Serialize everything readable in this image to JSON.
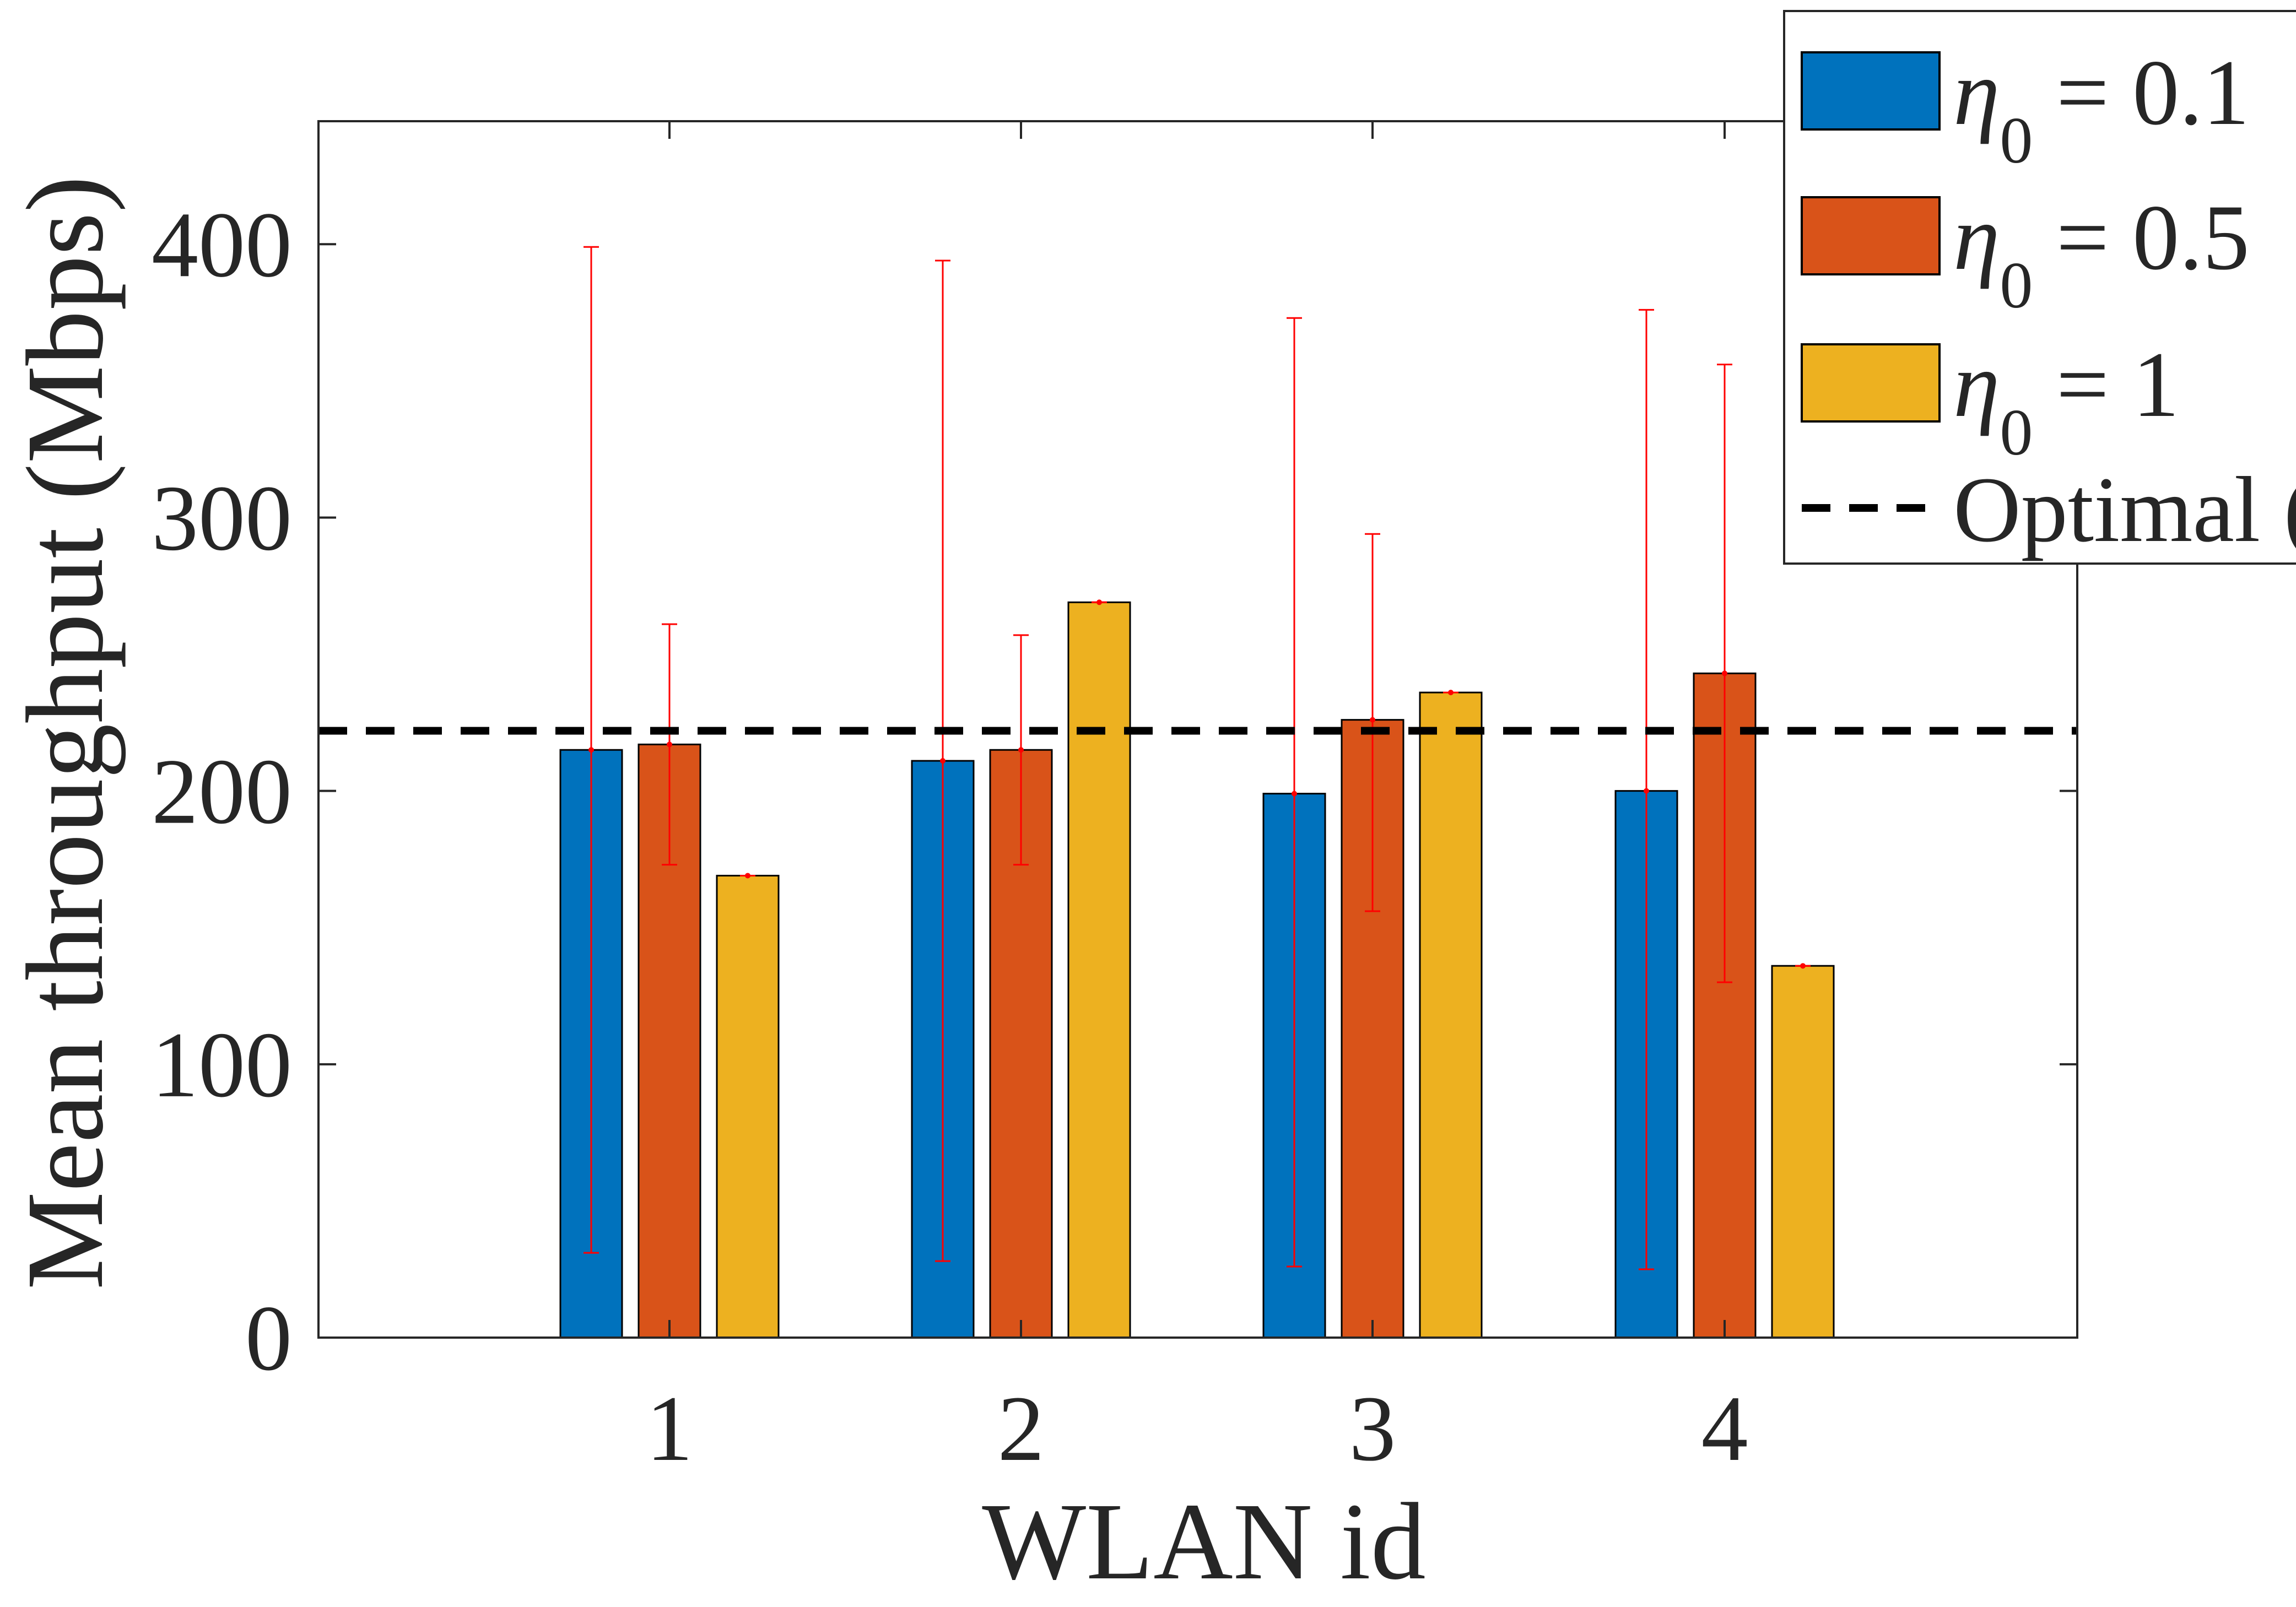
{
  "chart_data": {
    "type": "bar",
    "categories": [
      "1",
      "2",
      "3",
      "4"
    ],
    "xlabel": "WLAN id",
    "ylabel": "Mean throughput (Mbps)",
    "ylim": [
      0,
      445
    ],
    "yticks": [
      0,
      100,
      200,
      300,
      400
    ],
    "grid": false,
    "legend_position": "top-right",
    "series": [
      {
        "name_symbol": "η",
        "name_subscript": "0",
        "name_value": " = 0.1",
        "color": "#0072BD",
        "values": [
          215,
          211,
          199,
          200
        ],
        "error_low": [
          31,
          28,
          26,
          25
        ],
        "error_high": [
          399,
          394,
          373,
          376
        ]
      },
      {
        "name_symbol": "η",
        "name_subscript": "0",
        "name_value": " = 0.5",
        "color": "#D95319",
        "values": [
          217,
          215,
          226,
          243
        ],
        "error_low": [
          173,
          173,
          156,
          130
        ],
        "error_high": [
          261,
          257,
          294,
          356
        ]
      },
      {
        "name_symbol": "η",
        "name_subscript": "0",
        "name_value": " = 1",
        "color": "#EDB120",
        "values": [
          169,
          269,
          236,
          136
        ],
        "error_low": [
          169,
          269,
          236,
          136
        ],
        "error_high": [
          169,
          269,
          236,
          136
        ]
      }
    ],
    "reference_line": {
      "name": "Optimal (",
      "value": 222,
      "style": "dashed",
      "color": "#000000"
    },
    "error_bar_color": "#FF0000"
  }
}
